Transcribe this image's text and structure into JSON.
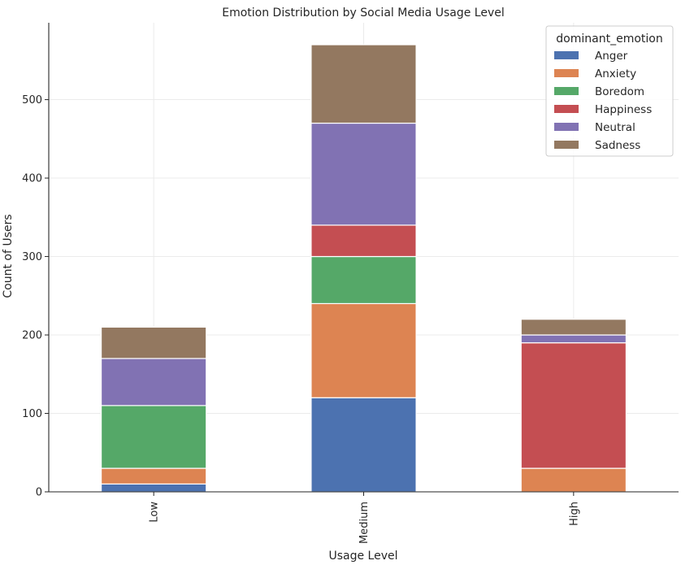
{
  "chart_data": {
    "type": "bar",
    "stacked": true,
    "title": "Emotion Distribution by Social Media Usage Level",
    "xlabel": "Usage Level",
    "ylabel": "Count of Users",
    "categories": [
      "Low",
      "Medium",
      "High"
    ],
    "ylim": [
      0,
      598
    ],
    "yticks": [
      0,
      100,
      200,
      300,
      400,
      500
    ],
    "grid": true,
    "legend": {
      "title": "dominant_emotion",
      "placement": "top-right"
    },
    "series": [
      {
        "name": "Anger",
        "color": "#4c72b0",
        "values": [
          10,
          120,
          0
        ]
      },
      {
        "name": "Anxiety",
        "color": "#dd8452",
        "values": [
          20,
          120,
          30
        ]
      },
      {
        "name": "Boredom",
        "color": "#55a868",
        "values": [
          80,
          60,
          0
        ]
      },
      {
        "name": "Happiness",
        "color": "#c44e52",
        "values": [
          0,
          40,
          160
        ]
      },
      {
        "name": "Neutral",
        "color": "#8172b3",
        "values": [
          60,
          130,
          10
        ]
      },
      {
        "name": "Sadness",
        "color": "#937860",
        "values": [
          40,
          100,
          20
        ]
      }
    ]
  }
}
